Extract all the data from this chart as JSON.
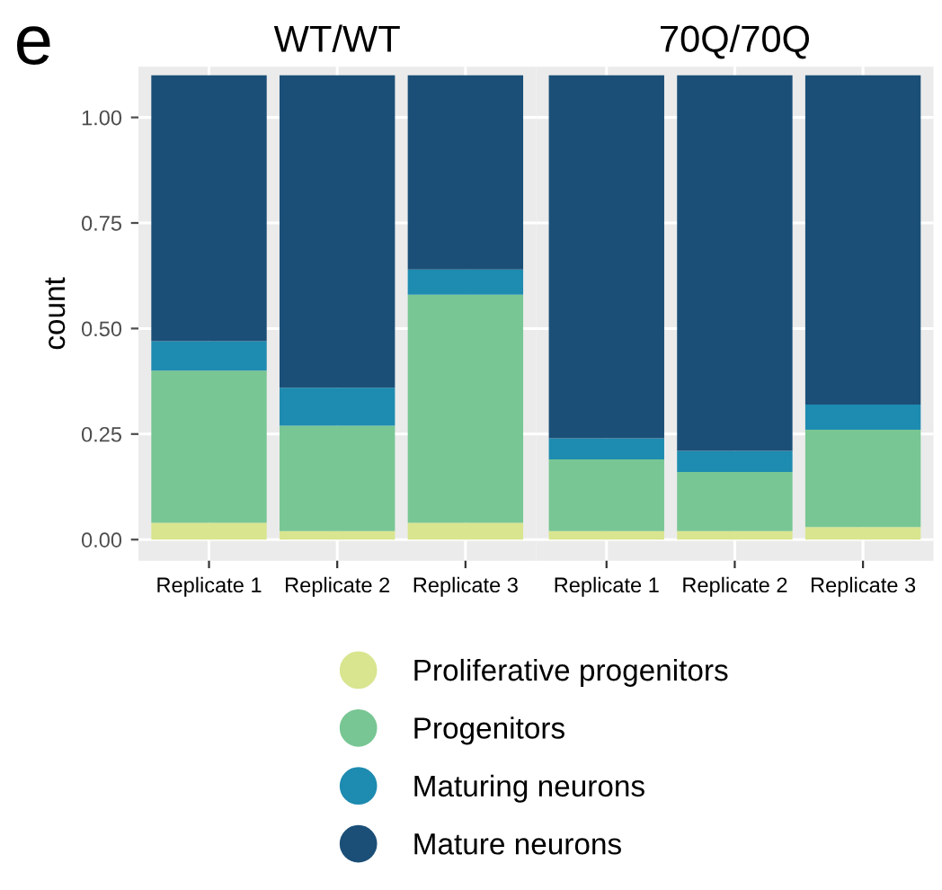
{
  "chart_data": [
    {
      "type": "bar",
      "title": "WT/WT",
      "ylabel": "count",
      "stacked": true,
      "categories": [
        "Replicate 1",
        "Replicate 2",
        "Replicate 3"
      ],
      "ylim": [
        -0.05,
        1.12
      ],
      "yticks": [
        {
          "value": 0,
          "label": "0.00"
        },
        {
          "value": 0.25,
          "label": "0.25"
        },
        {
          "value": 0.5,
          "label": "0.50"
        },
        {
          "value": 0.75,
          "label": "0.75"
        },
        {
          "value": 1,
          "label": "1.00"
        }
      ],
      "grid": true,
      "legend": "bottom",
      "annotations": [
        "e"
      ],
      "series": [
        {
          "name": "Proliferative progenitors",
          "color": "#d9e58f",
          "values": [
            0.04,
            0.02,
            0.04
          ]
        },
        {
          "name": "Progenitors",
          "color": "#78c693",
          "values": [
            0.36,
            0.25,
            0.54
          ]
        },
        {
          "name": "Maturing neurons",
          "color": "#1e8bb0",
          "values": [
            0.07,
            0.09,
            0.06
          ]
        },
        {
          "name": "Mature neurons",
          "color": "#1b4f77",
          "values": [
            0.63,
            0.74,
            0.46
          ]
        }
      ]
    },
    {
      "type": "bar",
      "title": "70Q/70Q",
      "stacked": true,
      "categories": [
        "Replicate 1",
        "Replicate 2",
        "Replicate 3"
      ],
      "ylim": [
        -0.05,
        1.12
      ],
      "tick_labels": "x",
      "grid": true,
      "series": [
        {
          "color": "#d9e58f",
          "values": [
            0.02,
            0.02,
            0.03
          ]
        },
        {
          "color": "#78c693",
          "values": [
            0.17,
            0.14,
            0.23
          ]
        },
        {
          "color": "#1e8bb0",
          "values": [
            0.05,
            0.05,
            0.06
          ]
        },
        {
          "color": "#1b4f77",
          "values": [
            0.86,
            0.89,
            0.78
          ]
        }
      ]
    }
  ]
}
